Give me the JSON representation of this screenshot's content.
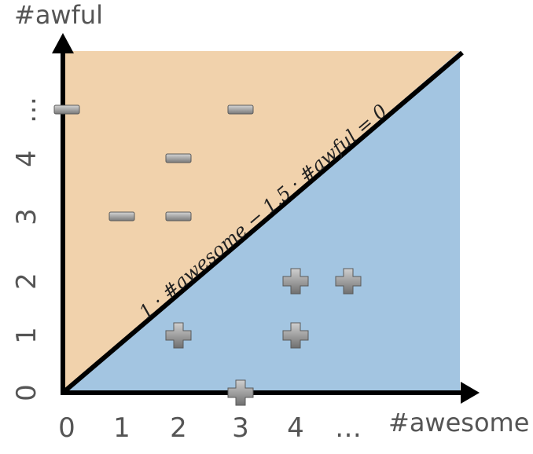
{
  "chart_data": {
    "type": "scatter",
    "xlabel": "#awesome",
    "ylabel": "#awful",
    "x_ticks": [
      "0",
      "1",
      "2",
      "3",
      "4",
      "…"
    ],
    "y_ticks": [
      "0",
      "1",
      "2",
      "3",
      "4",
      "…"
    ],
    "decision_boundary": "1 · #awesome − 1.5 · #awful = 0",
    "region_colors": {
      "negative": "#f1d2ac",
      "positive": "#a3c5e1"
    },
    "negative_points": [
      {
        "x": 0,
        "y": 5
      },
      {
        "x": 3,
        "y": 5
      },
      {
        "x": 2,
        "y": 4
      },
      {
        "x": 1,
        "y": 3
      },
      {
        "x": 2,
        "y": 3
      }
    ],
    "positive_points": [
      {
        "x": 4,
        "y": 2
      },
      {
        "x": 5,
        "y": 2
      },
      {
        "x": 2,
        "y": 1
      },
      {
        "x": 4,
        "y": 1
      },
      {
        "x": 3,
        "y": 0
      }
    ]
  }
}
